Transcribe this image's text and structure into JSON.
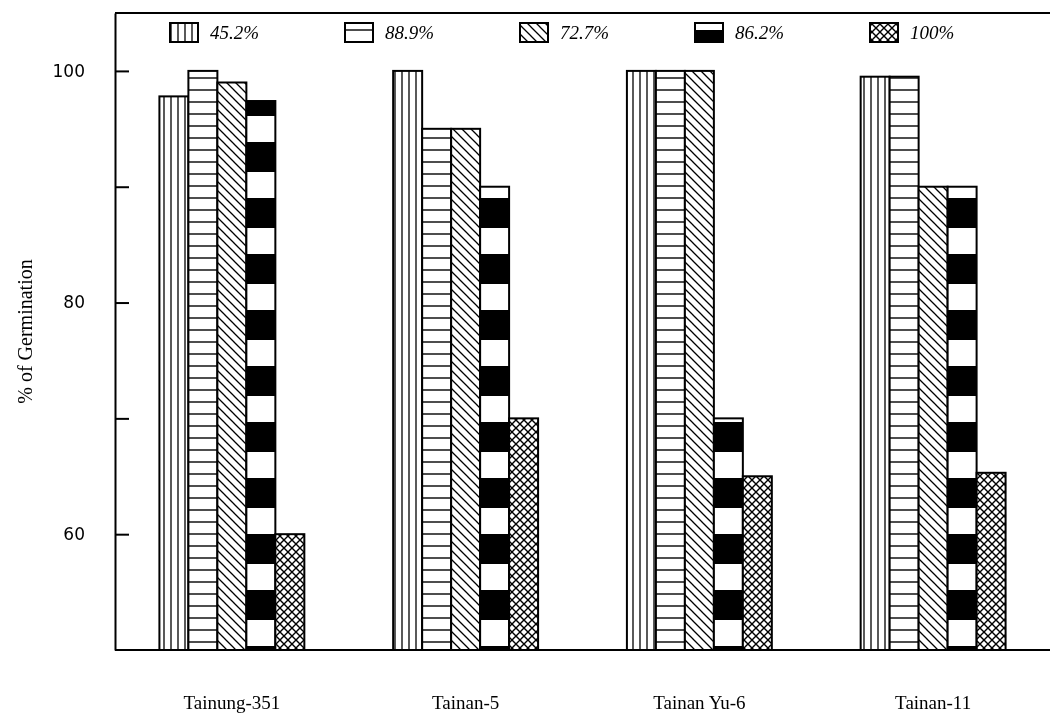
{
  "chart_data": {
    "type": "bar",
    "ylabel": "% of Germination",
    "categories": [
      "Tainung-351",
      "Tainan-5",
      "Tainan Yu-6",
      "Tainan-11"
    ],
    "series": [
      {
        "name": "45.2%",
        "color": "#000000",
        "values": [
          97.8,
          100,
          100,
          99.5
        ]
      },
      {
        "name": "88.9%",
        "color": "#000000",
        "values": [
          100,
          95,
          100,
          99.5
        ]
      },
      {
        "name": "72.7%",
        "color": "#000000",
        "values": [
          99,
          95,
          100,
          90
        ]
      },
      {
        "name": "86.2%",
        "color": "#000000",
        "values": [
          97.4,
          90,
          70,
          90
        ]
      },
      {
        "name": "100%",
        "color": "#000000",
        "values": [
          60,
          70,
          65,
          65.3
        ]
      }
    ],
    "ylim": [
      50,
      105
    ],
    "yticks": [
      60,
      {
        "value": 70,
        "label": null
      },
      80,
      {
        "value": 90,
        "label": null
      },
      100
    ],
    "legend": "top"
  }
}
